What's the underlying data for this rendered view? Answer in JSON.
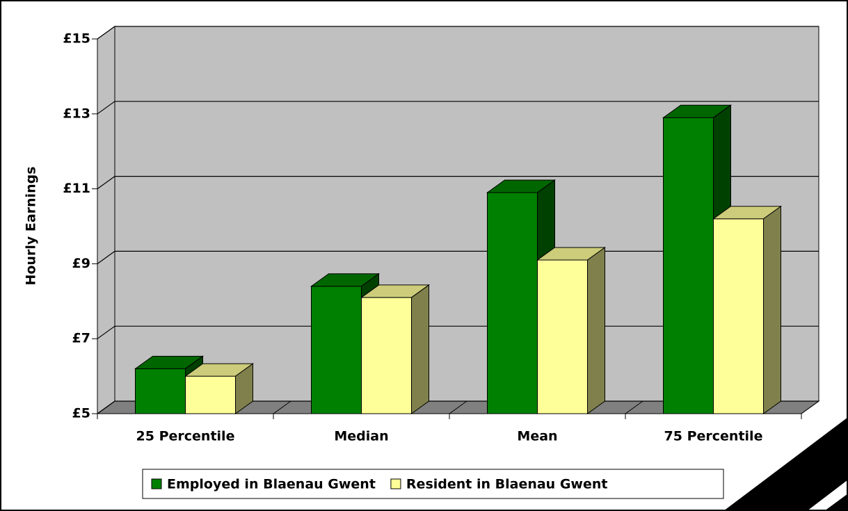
{
  "chart_data": {
    "type": "bar",
    "y_label": "Hourly Earnings",
    "categories": [
      "25 Percentile",
      "Median",
      "Mean",
      "75 Percentile"
    ],
    "series": [
      {
        "name": "Employed in Blaenau Gwent",
        "color": "#008000",
        "values": [
          6.2,
          8.4,
          10.9,
          12.9
        ]
      },
      {
        "name": "Resident in Blaenau Gwent",
        "color": "#ffff99",
        "values": [
          6.0,
          8.1,
          9.1,
          10.2
        ]
      }
    ],
    "ylim": [
      5,
      15
    ],
    "yticks": [
      {
        "value": 5,
        "label": "£5"
      },
      {
        "value": 7,
        "label": "£7"
      },
      {
        "value": 9,
        "label": "£9"
      },
      {
        "value": 11,
        "label": "£11"
      },
      {
        "value": 13,
        "label": "£13"
      },
      {
        "value": 15,
        "label": "£15"
      }
    ],
    "grid": true,
    "legend": "bottom"
  }
}
